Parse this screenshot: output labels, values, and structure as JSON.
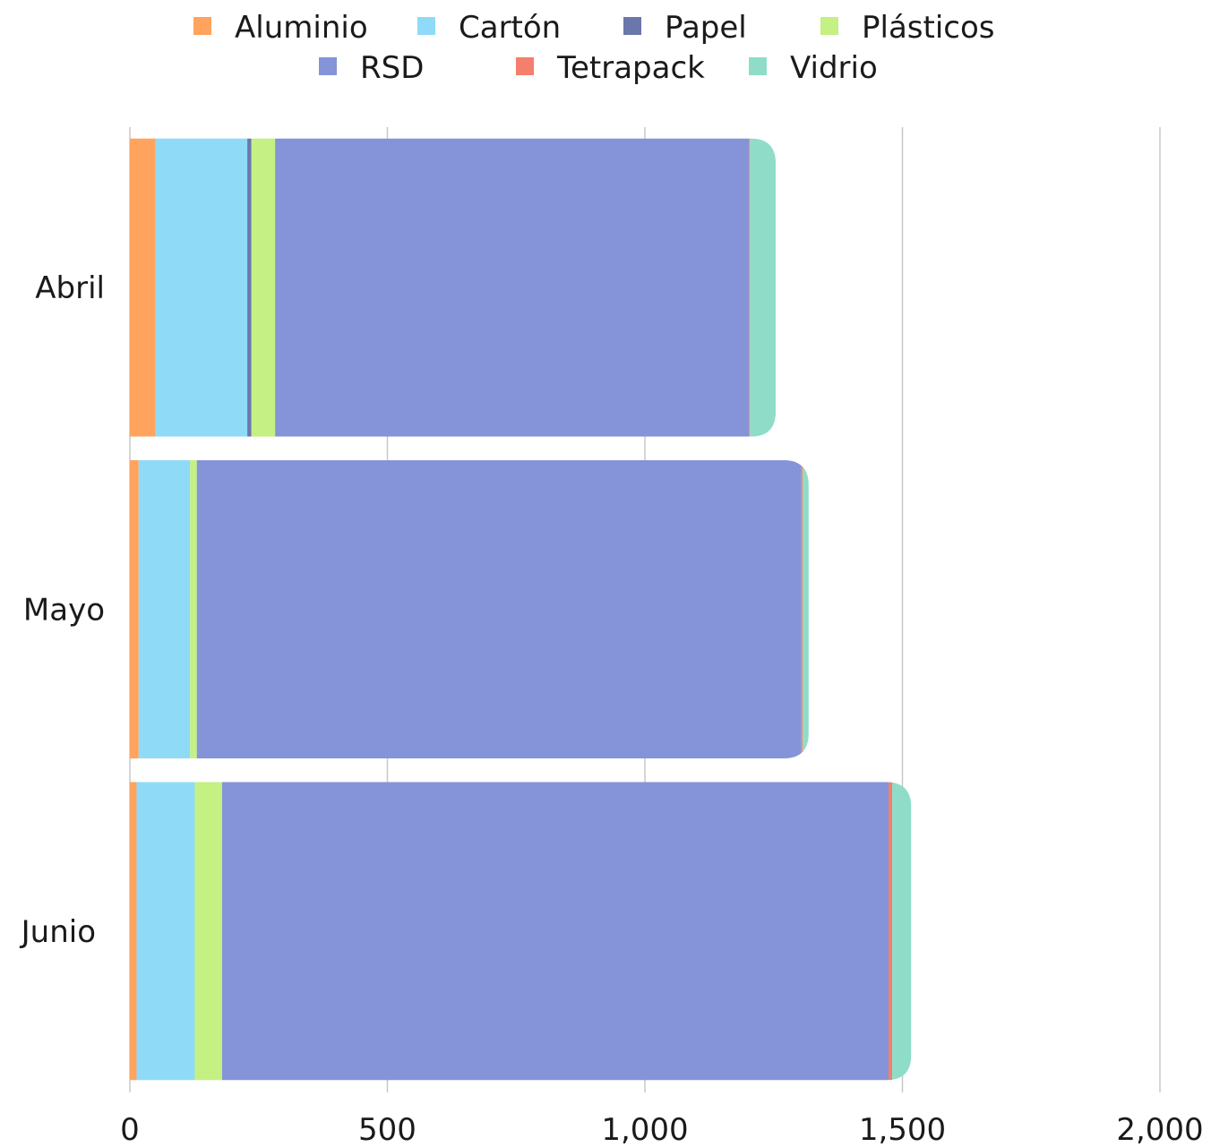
{
  "chart_data": {
    "type": "bar",
    "orientation": "horizontal",
    "stacked": true,
    "title": "",
    "xlabel": "",
    "ylabel": "",
    "categories": [
      "Abril",
      "Mayo",
      "Junio"
    ],
    "xlim": [
      0,
      2000
    ],
    "x_ticks": [
      0,
      500,
      1000,
      1500,
      2000
    ],
    "x_tick_labels": [
      "0",
      "500",
      "1,000",
      "1,500",
      "2,000"
    ],
    "grid": true,
    "legend_position": "top",
    "series": [
      {
        "name": "Aluminio",
        "color": "#FFA35E",
        "values": [
          50,
          17,
          13
        ]
      },
      {
        "name": "Cartón",
        "color": "#8FDBF7",
        "values": [
          178,
          100,
          113
        ]
      },
      {
        "name": "Papel",
        "color": "#6B77AB",
        "values": [
          8,
          0,
          0
        ]
      },
      {
        "name": "Plásticos",
        "color": "#C4F084",
        "values": [
          46,
          13,
          53
        ]
      },
      {
        "name": "RSD",
        "color": "#8593D8",
        "values": [
          920,
          1174,
          1294
        ]
      },
      {
        "name": "Tetrapack",
        "color": "#F47F6B",
        "values": [
          2,
          2,
          7
        ]
      },
      {
        "name": "Vidrio",
        "color": "#8FDDC8",
        "values": [
          50,
          12,
          37
        ]
      }
    ]
  }
}
